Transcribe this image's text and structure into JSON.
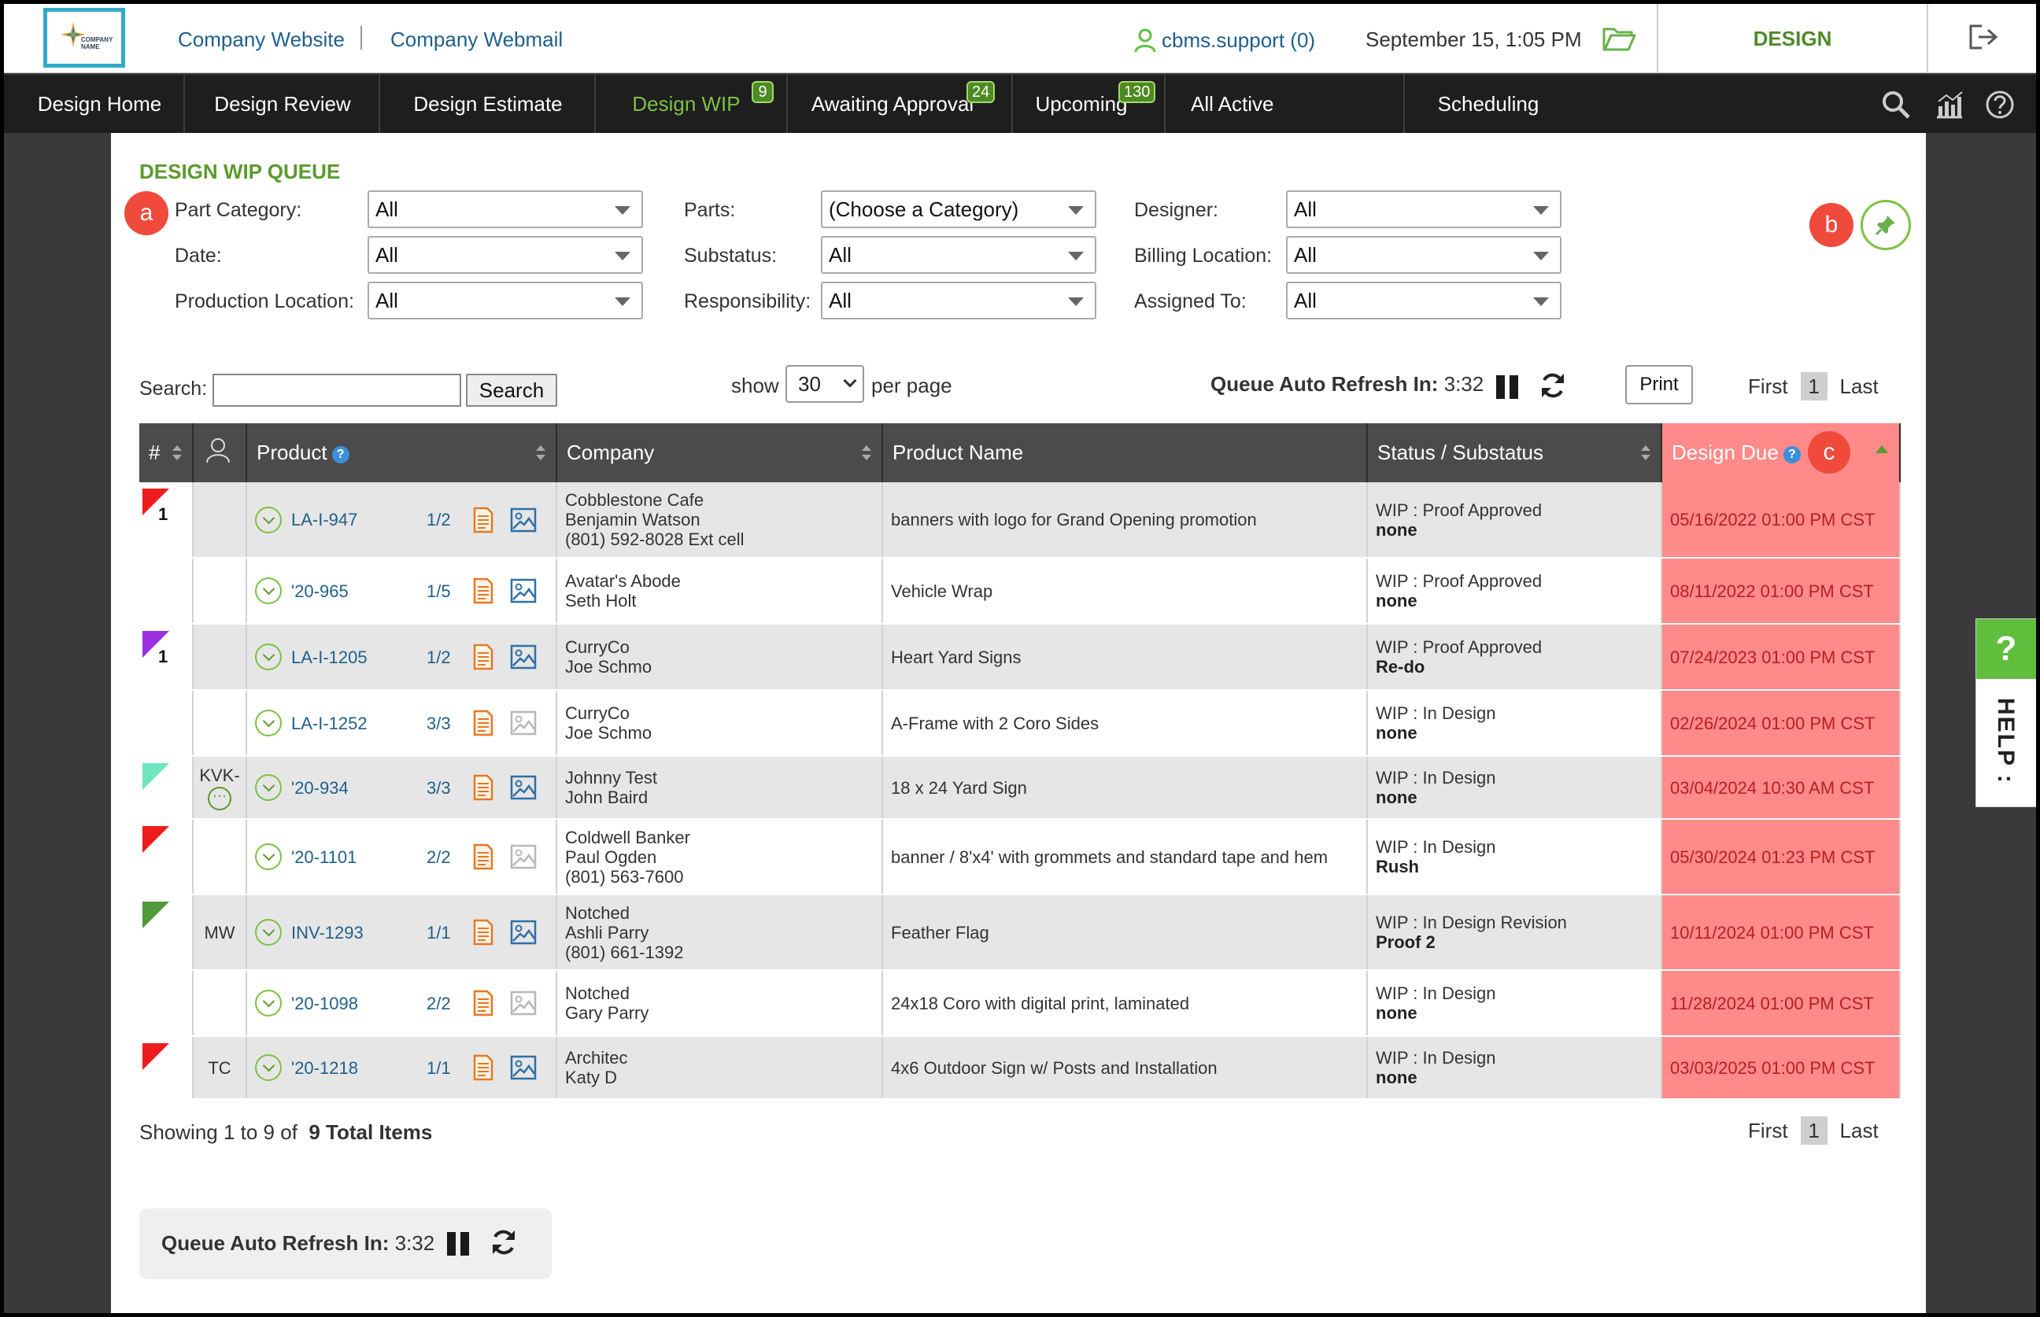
{
  "topbar": {
    "logo_text": "COMPANY NAME",
    "company_website": "Company Website",
    "company_webmail": "Company Webmail",
    "user": "cbms.support (0)",
    "datetime": "September 15, 1:05 PM",
    "module": "DESIGN"
  },
  "nav": {
    "items": [
      {
        "label": "Design Home"
      },
      {
        "label": "Design Review"
      },
      {
        "label": "Design Estimate"
      },
      {
        "label": "Design WIP",
        "badge": "9"
      },
      {
        "label": "Awaiting Approval",
        "badge": "24"
      },
      {
        "label": "Upcoming",
        "badge": "130"
      },
      {
        "label": "All Active"
      },
      {
        "label": "Scheduling"
      }
    ],
    "active": "Design WIP"
  },
  "queue": {
    "title": "DESIGN WIP QUEUE",
    "markers": {
      "a": "a",
      "b": "b",
      "c": "c"
    },
    "filters": {
      "part_category": {
        "label": "Part Category:",
        "value": "All"
      },
      "date": {
        "label": "Date:",
        "value": "All"
      },
      "production_location": {
        "label": "Production Location:",
        "value": "All"
      },
      "parts": {
        "label": "Parts:",
        "value": "(Choose a Category)"
      },
      "substatus": {
        "label": "Substatus:",
        "value": "All"
      },
      "responsibility": {
        "label": "Responsibility:",
        "value": "All"
      },
      "designer": {
        "label": "Designer:",
        "value": "All"
      },
      "billing_location": {
        "label": "Billing Location:",
        "value": "All"
      },
      "assigned_to": {
        "label": "Assigned To:",
        "value": "All"
      }
    },
    "search": {
      "label": "Search:",
      "value": "",
      "button": "Search"
    },
    "show": {
      "label": "show",
      "value": "30",
      "suffix": "per page"
    },
    "refresh": {
      "label": "Queue Auto Refresh In:",
      "time": "3:32"
    },
    "print": "Print",
    "pager": {
      "first": "First",
      "page": "1",
      "last": "Last"
    },
    "showing": {
      "text": "Showing 1 to 9 of",
      "total": "9 Total Items"
    }
  },
  "table": {
    "headers": {
      "num": "#",
      "product": "Product",
      "company": "Company",
      "product_name": "Product Name",
      "status": "Status / Substatus",
      "design_due": "Design Due"
    },
    "rows": [
      {
        "flag_color": "#ee1c1c",
        "flag_num": "1",
        "assigned": "",
        "code": "LA-I-947",
        "frac": "1/2",
        "img_active": true,
        "company": [
          "Cobblestone Cafe",
          "Benjamin Watson",
          "(801) 592-8028 Ext cell"
        ],
        "product_name": "banners with logo for Grand Opening promotion",
        "status": "WIP : Proof Approved",
        "substatus": "none",
        "due": "05/16/2022 01:00 PM CST"
      },
      {
        "flag_color": "",
        "flag_num": "",
        "assigned": "",
        "code": "'20-965",
        "frac": "1/5",
        "img_active": true,
        "company": [
          "Avatar's Abode",
          "Seth Holt"
        ],
        "product_name": "Vehicle Wrap",
        "status": "WIP : Proof Approved",
        "substatus": "none",
        "due": "08/11/2022 01:00 PM CST"
      },
      {
        "flag_color": "#9b30e0",
        "flag_num": "1",
        "assigned": "",
        "code": "LA-I-1205",
        "frac": "1/2",
        "img_active": true,
        "company": [
          "CurryCo",
          "Joe Schmo"
        ],
        "product_name": "Heart Yard Signs",
        "status": "WIP : Proof Approved",
        "substatus": "Re-do",
        "due": "07/24/2023 01:00 PM CST"
      },
      {
        "flag_color": "",
        "flag_num": "",
        "assigned": "",
        "code": "LA-I-1252",
        "frac": "3/3",
        "img_active": false,
        "company": [
          "CurryCo",
          "Joe Schmo"
        ],
        "product_name": "A-Frame with 2 Coro Sides",
        "status": "WIP : In Design",
        "substatus": "none",
        "due": "02/26/2024 01:00 PM CST"
      },
      {
        "flag_color": "#6ee6c0",
        "flag_num": "",
        "assigned": "KVK-",
        "assigned_more": true,
        "code": "'20-934",
        "frac": "3/3",
        "img_active": true,
        "company": [
          "Johnny Test",
          "John Baird"
        ],
        "product_name": "18 x 24 Yard Sign",
        "status": "WIP : In Design",
        "substatus": "none",
        "due": "03/04/2024 10:30 AM CST"
      },
      {
        "flag_color": "#ee1c1c",
        "flag_num": "",
        "assigned": "",
        "code": "'20-1101",
        "frac": "2/2",
        "img_active": false,
        "company": [
          "Coldwell Banker",
          "Paul Ogden",
          "(801) 563-7600"
        ],
        "product_name": "banner / 8'x4' with grommets and standard tape and hem",
        "status": "WIP : In Design",
        "substatus": "Rush",
        "due": "05/30/2024 01:23 PM CST"
      },
      {
        "flag_color": "#4f9a3a",
        "flag_num": "",
        "assigned": "MW",
        "code": "INV-1293",
        "frac": "1/1",
        "img_active": true,
        "company": [
          "Notched",
          "Ashli Parry",
          "(801) 661-1392"
        ],
        "product_name": "Feather Flag",
        "status": "WIP : In Design Revision",
        "substatus": "Proof 2",
        "due": "10/11/2024 01:00 PM CST"
      },
      {
        "flag_color": "",
        "flag_num": "",
        "assigned": "",
        "code": "'20-1098",
        "frac": "2/2",
        "img_active": false,
        "company": [
          "Notched",
          "Gary Parry"
        ],
        "product_name": "24x18 Coro with digital print, laminated",
        "status": "WIP : In Design",
        "substatus": "none",
        "due": "11/28/2024 01:00 PM CST"
      },
      {
        "flag_color": "#ee1c1c",
        "flag_num": "",
        "assigned": "TC",
        "code": "'20-1218",
        "frac": "1/1",
        "img_active": true,
        "company": [
          "Architec",
          "Katy D"
        ],
        "product_name": "4x6 Outdoor Sign w/ Posts and Installation",
        "status": "WIP : In Design",
        "substatus": "none",
        "due": "03/03/2025 01:00 PM CST"
      }
    ]
  },
  "help": {
    "q": "?",
    "text": "HELP :"
  },
  "colors": {
    "accent_green": "#5b9a2c",
    "link_blue": "#1f5f8b",
    "due_red": "#ff8a8a",
    "marker_red": "#f04a3c"
  },
  "icons": [
    "user-icon",
    "folder-icon",
    "logout-icon",
    "search-icon",
    "chart-icon",
    "help-circle-icon",
    "pin-icon",
    "pause-icon",
    "refresh-icon",
    "expand-icon",
    "document-icon",
    "image-icon"
  ]
}
